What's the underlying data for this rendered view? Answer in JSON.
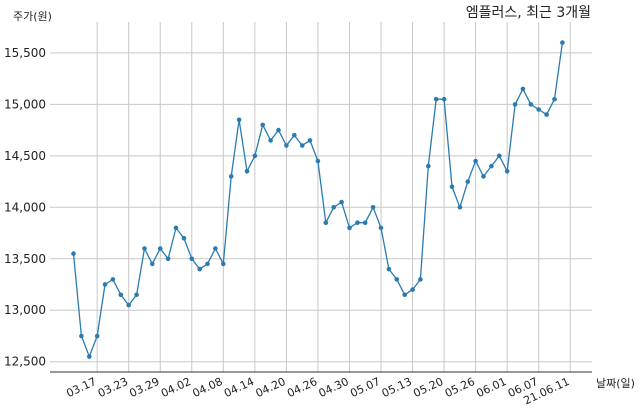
{
  "chart_data": {
    "type": "line",
    "title": "엠플러스, 최근 3개월",
    "ylabel": "주가(원)",
    "xlabel": "날짜(일)",
    "ylim": [
      12400,
      15800
    ],
    "yticks": [
      12500,
      13000,
      13500,
      14000,
      14500,
      15000,
      15500
    ],
    "ytick_labels": [
      "12,500",
      "13,000",
      "13,500",
      "14,000",
      "14,500",
      "15,000",
      "15,500"
    ],
    "xtick_labels": [
      "03.17",
      "03.23",
      "03.29",
      "04.02",
      "04.08",
      "04.14",
      "04.20",
      "04.26",
      "04.30",
      "05.07",
      "05.13",
      "05.20",
      "05.26",
      "06.01",
      "06.07",
      "21.06.11"
    ],
    "xtick_index": [
      3,
      7,
      11,
      15,
      19,
      23,
      27,
      31,
      35,
      39,
      43,
      47,
      51,
      55,
      59,
      63
    ],
    "grid": true,
    "line_color": "#2b7bb0",
    "values": [
      13550,
      12750,
      12550,
      12750,
      13250,
      13300,
      13150,
      13050,
      13150,
      13600,
      13450,
      13600,
      13500,
      13800,
      13700,
      13500,
      13400,
      13450,
      13600,
      13450,
      14300,
      14850,
      14350,
      14500,
      14800,
      14650,
      14750,
      14600,
      14700,
      14600,
      14650,
      14450,
      13850,
      14000,
      14050,
      13800,
      13850,
      13850,
      14000,
      13800,
      13400,
      13300,
      13150,
      13200,
      13300,
      14400,
      15050,
      15050,
      14200,
      14000,
      14250,
      14450,
      14300,
      14400,
      14500,
      14350,
      15000,
      15150,
      15000,
      14950,
      14900,
      15050,
      15600
    ]
  }
}
